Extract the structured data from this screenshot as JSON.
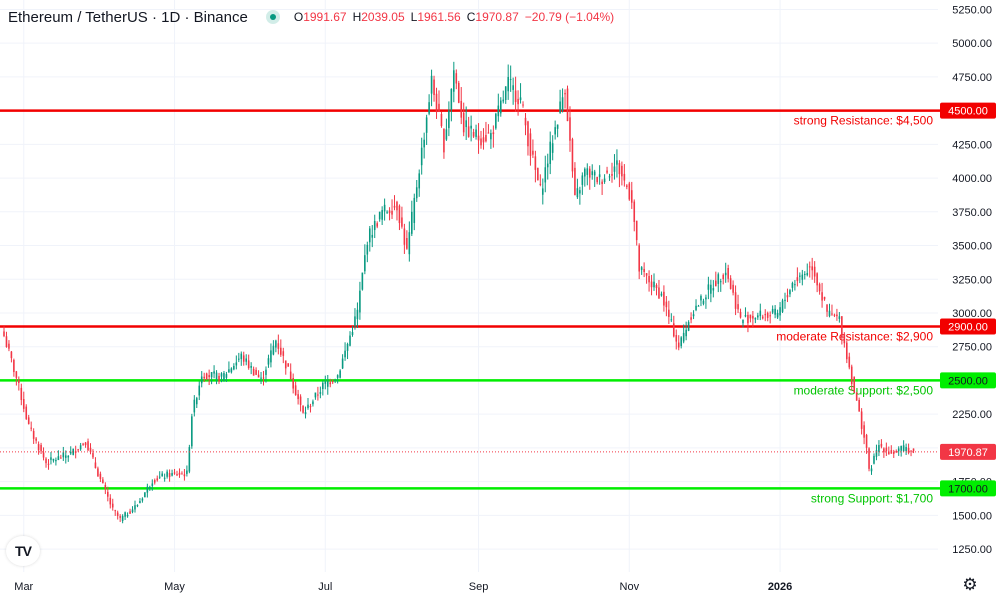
{
  "header": {
    "symbol": "Ethereum / TetherUS · 1D · Binance",
    "ohlc": [
      {
        "key": "O",
        "value": "1991.67"
      },
      {
        "key": "H",
        "value": "2039.05"
      },
      {
        "key": "L",
        "value": "1961.56"
      },
      {
        "key": "C",
        "value": "1970.87"
      },
      {
        "key": "",
        "value": "−20.79 (−1.04%)"
      }
    ]
  },
  "icons": {
    "logo": "tradingview-logo-icon",
    "settings": "gear-icon",
    "status": "market-status-dot-icon"
  },
  "logo_text": "TV",
  "chart_data": {
    "type": "candlestick",
    "title": "",
    "xlabel": "",
    "ylabel": "",
    "ylim": [
      1080,
      5320
    ],
    "y_ticks": [
      "5250.00",
      "5000.00",
      "4750.00",
      "4500.00",
      "4250.00",
      "4000.00",
      "3750.00",
      "3500.00",
      "3250.00",
      "3000.00",
      "2750.00",
      "2500.00",
      "2250.00",
      "2000.00",
      "1750.00",
      "1500.00",
      "1250.00"
    ],
    "x_range": [
      "2025-02-21",
      "2026-02-24"
    ],
    "x_ticks": [
      {
        "date": "2025-03-01",
        "label": "Mar"
      },
      {
        "date": "2025-05-01",
        "label": "May"
      },
      {
        "date": "2025-07-01",
        "label": "Jul"
      },
      {
        "date": "2025-09-01",
        "label": "Sep"
      },
      {
        "date": "2025-11-01",
        "label": "Nov"
      },
      {
        "date": "2026-01-01",
        "label": "2026"
      }
    ],
    "start_date": "2025-02-21",
    "close_path": [
      [
        "2025-02-21",
        2830
      ],
      [
        "2025-02-26",
        2520
      ],
      [
        "2025-03-03",
        2160
      ],
      [
        "2025-03-10",
        1890
      ],
      [
        "2025-03-20",
        1960
      ],
      [
        "2025-03-26",
        2050
      ],
      [
        "2025-03-31",
        1810
      ],
      [
        "2025-04-06",
        1540
      ],
      [
        "2025-04-09",
        1470
      ],
      [
        "2025-04-16",
        1580
      ],
      [
        "2025-04-22",
        1760
      ],
      [
        "2025-04-28",
        1800
      ],
      [
        "2025-05-06",
        1810
      ],
      [
        "2025-05-08",
        2250
      ],
      [
        "2025-05-12",
        2550
      ],
      [
        "2025-05-20",
        2520
      ],
      [
        "2025-05-28",
        2680
      ],
      [
        "2025-06-05",
        2500
      ],
      [
        "2025-06-11",
        2800
      ],
      [
        "2025-06-17",
        2530
      ],
      [
        "2025-06-22",
        2250
      ],
      [
        "2025-06-30",
        2460
      ],
      [
        "2025-07-06",
        2540
      ],
      [
        "2025-07-10",
        2770
      ],
      [
        "2025-07-14",
        3010
      ],
      [
        "2025-07-18",
        3550
      ],
      [
        "2025-07-24",
        3750
      ],
      [
        "2025-07-30",
        3800
      ],
      [
        "2025-08-03",
        3450
      ],
      [
        "2025-08-09",
        4200
      ],
      [
        "2025-08-13",
        4720
      ],
      [
        "2025-08-18",
        4250
      ],
      [
        "2025-08-22",
        4800
      ],
      [
        "2025-08-26",
        4380
      ],
      [
        "2025-09-01",
        4300
      ],
      [
        "2025-09-06",
        4320
      ],
      [
        "2025-09-13",
        4700
      ],
      [
        "2025-09-18",
        4580
      ],
      [
        "2025-09-22",
        4200
      ],
      [
        "2025-09-26",
        3900
      ],
      [
        "2025-10-03",
        4450
      ],
      [
        "2025-10-06",
        4680
      ],
      [
        "2025-10-10",
        3830
      ],
      [
        "2025-10-14",
        4050
      ],
      [
        "2025-10-20",
        3990
      ],
      [
        "2025-10-27",
        4100
      ],
      [
        "2025-11-02",
        3850
      ],
      [
        "2025-11-05",
        3320
      ],
      [
        "2025-11-14",
        3130
      ],
      [
        "2025-11-21",
        2750
      ],
      [
        "2025-11-26",
        2990
      ],
      [
        "2025-12-03",
        3170
      ],
      [
        "2025-12-10",
        3320
      ],
      [
        "2025-12-16",
        2950
      ],
      [
        "2025-12-22",
        2980
      ],
      [
        "2025-12-31",
        2990
      ],
      [
        "2026-01-06",
        3220
      ],
      [
        "2026-01-14",
        3350
      ],
      [
        "2026-01-20",
        3000
      ],
      [
        "2026-01-25",
        2950
      ],
      [
        "2026-01-31",
        2420
      ],
      [
        "2026-02-05",
        2000
      ],
      [
        "2026-02-06",
        1820
      ],
      [
        "2026-02-10",
        2020
      ],
      [
        "2026-02-15",
        1960
      ],
      [
        "2026-02-21",
        2000
      ],
      [
        "2026-02-24",
        1970.87
      ]
    ],
    "last_price": {
      "value": 1970.87,
      "label": "1970.87"
    },
    "levels": [
      {
        "value": 4500,
        "tag": "4500.00",
        "label": "strong Resistance: $4,500",
        "color": "#f20000"
      },
      {
        "value": 2900,
        "tag": "2900.00",
        "label": "moderate Resistance: $2,900",
        "color": "#f20000"
      },
      {
        "value": 2500,
        "tag": "2500.00",
        "label": "moderate Support: $2,500",
        "color": "#00ee00"
      },
      {
        "value": 1700,
        "tag": "1700.00",
        "label": "strong Support: $1,700",
        "color": "#00ee00"
      }
    ],
    "colors": {
      "up": "#089981",
      "down": "#f23645",
      "grid": "#f0f3fa",
      "axis_text": "#131722",
      "last_price": "#f23645"
    },
    "grid": true
  }
}
